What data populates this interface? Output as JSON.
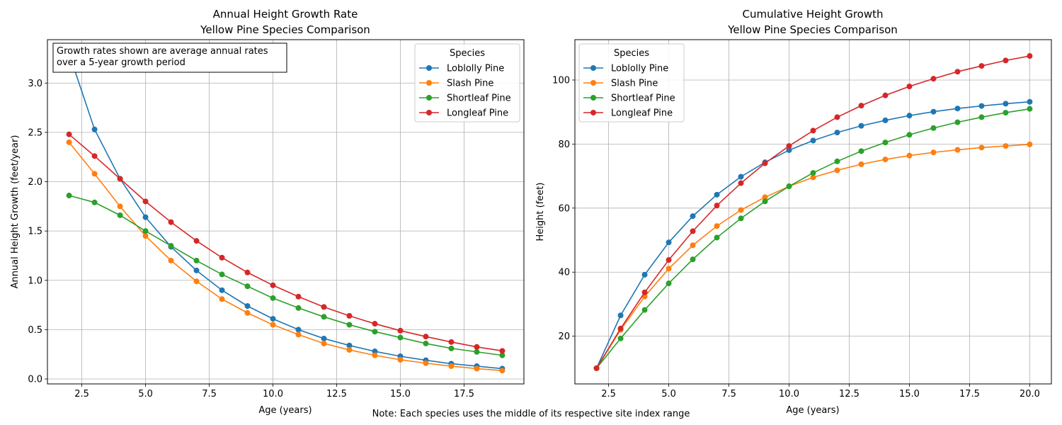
{
  "figure_note": "Note: Each species uses the middle of its respective site index range",
  "chart_data": [
    {
      "type": "line",
      "title": "Annual Height Growth Rate",
      "subtitle": "Yellow Pine Species Comparison",
      "xlabel": "Age (years)",
      "ylabel": "Annual Height Growth (feet/year)",
      "xlim": [
        1.15,
        19.85
      ],
      "ylim": [
        -0.05,
        3.44
      ],
      "xticks": [
        2.5,
        5.0,
        7.5,
        10.0,
        12.5,
        15.0,
        17.5
      ],
      "xtick_labels": [
        "2.5",
        "5.0",
        "7.5",
        "10.0",
        "12.5",
        "15.0",
        "17.5"
      ],
      "yticks": [
        0.0,
        0.5,
        1.0,
        1.5,
        2.0,
        2.5,
        3.0
      ],
      "ytick_labels": [
        "0.0",
        "0.5",
        "1.0",
        "1.5",
        "2.0",
        "2.5",
        "3.0"
      ],
      "grid": true,
      "legend_title": "Species",
      "legend_position": "upper right",
      "annotation": [
        "Growth rates shown are average annual rates",
        "over a 5-year growth period"
      ],
      "x": [
        2,
        3,
        4,
        5,
        6,
        7,
        8,
        9,
        10,
        11,
        12,
        13,
        14,
        15,
        16,
        17,
        18,
        19
      ],
      "series": [
        {
          "name": "Loblolly Pine",
          "color": "#1f77b4",
          "values": [
            3.3,
            2.53,
            2.03,
            1.64,
            1.34,
            1.1,
            0.9,
            0.74,
            0.61,
            0.5,
            0.41,
            0.34,
            0.28,
            0.23,
            0.19,
            0.155,
            0.13,
            0.105
          ]
        },
        {
          "name": "Slash Pine",
          "color": "#ff7f0e",
          "values": [
            2.4,
            2.08,
            1.75,
            1.45,
            1.2,
            0.99,
            0.81,
            0.67,
            0.55,
            0.45,
            0.36,
            0.295,
            0.24,
            0.195,
            0.16,
            0.13,
            0.105,
            0.085
          ]
        },
        {
          "name": "Shortleaf Pine",
          "color": "#2ca02c",
          "values": [
            1.86,
            1.79,
            1.66,
            1.5,
            1.35,
            1.2,
            1.06,
            0.94,
            0.82,
            0.72,
            0.63,
            0.55,
            0.48,
            0.42,
            0.36,
            0.31,
            0.275,
            0.24
          ]
        },
        {
          "name": "Longleaf Pine",
          "color": "#d62728",
          "values": [
            2.48,
            2.26,
            2.03,
            1.8,
            1.59,
            1.4,
            1.23,
            1.08,
            0.95,
            0.835,
            0.73,
            0.64,
            0.56,
            0.49,
            0.43,
            0.375,
            0.325,
            0.285
          ]
        }
      ]
    },
    {
      "type": "line",
      "title": "Cumulative Height Growth",
      "subtitle": "Yellow Pine Species Comparison",
      "xlabel": "Age (years)",
      "ylabel": "Height (feet)",
      "xlim": [
        1.1,
        20.9
      ],
      "ylim": [
        5.1,
        112.6
      ],
      "xticks": [
        2.5,
        5.0,
        7.5,
        10.0,
        12.5,
        15.0,
        17.5,
        20.0
      ],
      "xtick_labels": [
        "2.5",
        "5.0",
        "7.5",
        "10.0",
        "12.5",
        "15.0",
        "17.5",
        "20.0"
      ],
      "yticks": [
        20,
        40,
        60,
        80,
        100
      ],
      "ytick_labels": [
        "20",
        "40",
        "60",
        "80",
        "100"
      ],
      "grid": true,
      "legend_title": "Species",
      "legend_position": "upper left",
      "x": [
        2,
        3,
        4,
        5,
        6,
        7,
        8,
        9,
        10,
        11,
        12,
        13,
        14,
        15,
        16,
        17,
        18,
        19,
        20
      ],
      "series": [
        {
          "name": "Loblolly Pine",
          "color": "#1f77b4",
          "values": [
            10,
            26.5,
            39.2,
            49.3,
            57.5,
            64.2,
            69.8,
            74.3,
            78.1,
            81.1,
            83.6,
            85.7,
            87.4,
            88.9,
            90.1,
            91.1,
            91.9,
            92.6,
            93.2
          ]
        },
        {
          "name": "Slash Pine",
          "color": "#ff7f0e",
          "values": [
            10,
            22.0,
            32.4,
            41.1,
            48.4,
            54.4,
            59.4,
            63.4,
            66.8,
            69.6,
            71.8,
            73.7,
            75.2,
            76.4,
            77.4,
            78.2,
            78.9,
            79.4,
            79.9
          ]
        },
        {
          "name": "Shortleaf Pine",
          "color": "#2ca02c",
          "values": [
            10,
            19.3,
            28.2,
            36.5,
            44.0,
            50.8,
            56.8,
            62.1,
            66.8,
            71.0,
            74.6,
            77.8,
            80.5,
            82.9,
            85.0,
            86.8,
            88.4,
            89.8,
            91.0
          ]
        },
        {
          "name": "Longleaf Pine",
          "color": "#d62728",
          "values": [
            10,
            22.4,
            33.7,
            43.8,
            52.8,
            60.8,
            67.8,
            74.0,
            79.4,
            84.2,
            88.4,
            92.0,
            95.2,
            98.0,
            100.4,
            102.6,
            104.4,
            106.1,
            107.5
          ]
        }
      ]
    }
  ]
}
